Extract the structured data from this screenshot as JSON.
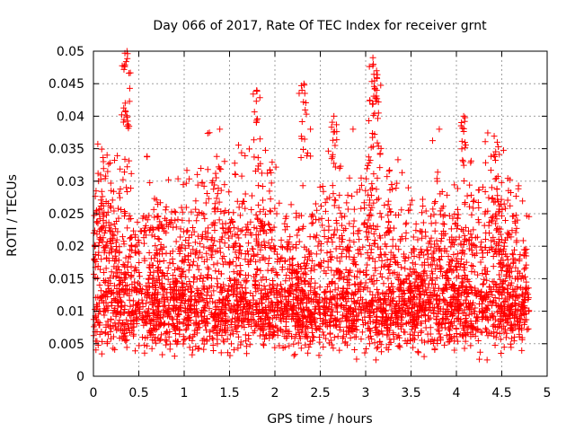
{
  "chart_data": {
    "type": "scatter",
    "title": "Day 066 of 2017, Rate Of TEC Index for receiver grnt",
    "xlabel": "GPS time / hours",
    "ylabel": "ROTI / TECUs",
    "xlim": [
      0,
      5
    ],
    "ylim": [
      0,
      0.05
    ],
    "xticks": [
      "0",
      "0.5",
      "1",
      "1.5",
      "2",
      "2.5",
      "3",
      "3.5",
      "4",
      "4.5",
      "5"
    ],
    "yticks": [
      "0",
      "0.005",
      "0.01",
      "0.015",
      "0.02",
      "0.025",
      "0.03",
      "0.035",
      "0.04",
      "0.045",
      "0.05"
    ],
    "grid": true,
    "marker": "+",
    "series": [
      {
        "name": "ROTI",
        "color": "#ff0000",
        "x_range": [
          0,
          4.8
        ],
        "sample_count": 4000,
        "typical_range": [
          0.005,
          0.03
        ],
        "dense_band": [
          0.005,
          0.015
        ],
        "peaks": [
          {
            "x": 0.37,
            "y": 0.05
          },
          {
            "x": 0.35,
            "y": 0.042
          },
          {
            "x": 1.8,
            "y": 0.044
          },
          {
            "x": 2.32,
            "y": 0.045
          },
          {
            "x": 2.65,
            "y": 0.04
          },
          {
            "x": 3.08,
            "y": 0.049
          },
          {
            "x": 3.12,
            "y": 0.047
          },
          {
            "x": 4.08,
            "y": 0.04
          },
          {
            "x": 4.45,
            "y": 0.036
          }
        ]
      }
    ]
  }
}
